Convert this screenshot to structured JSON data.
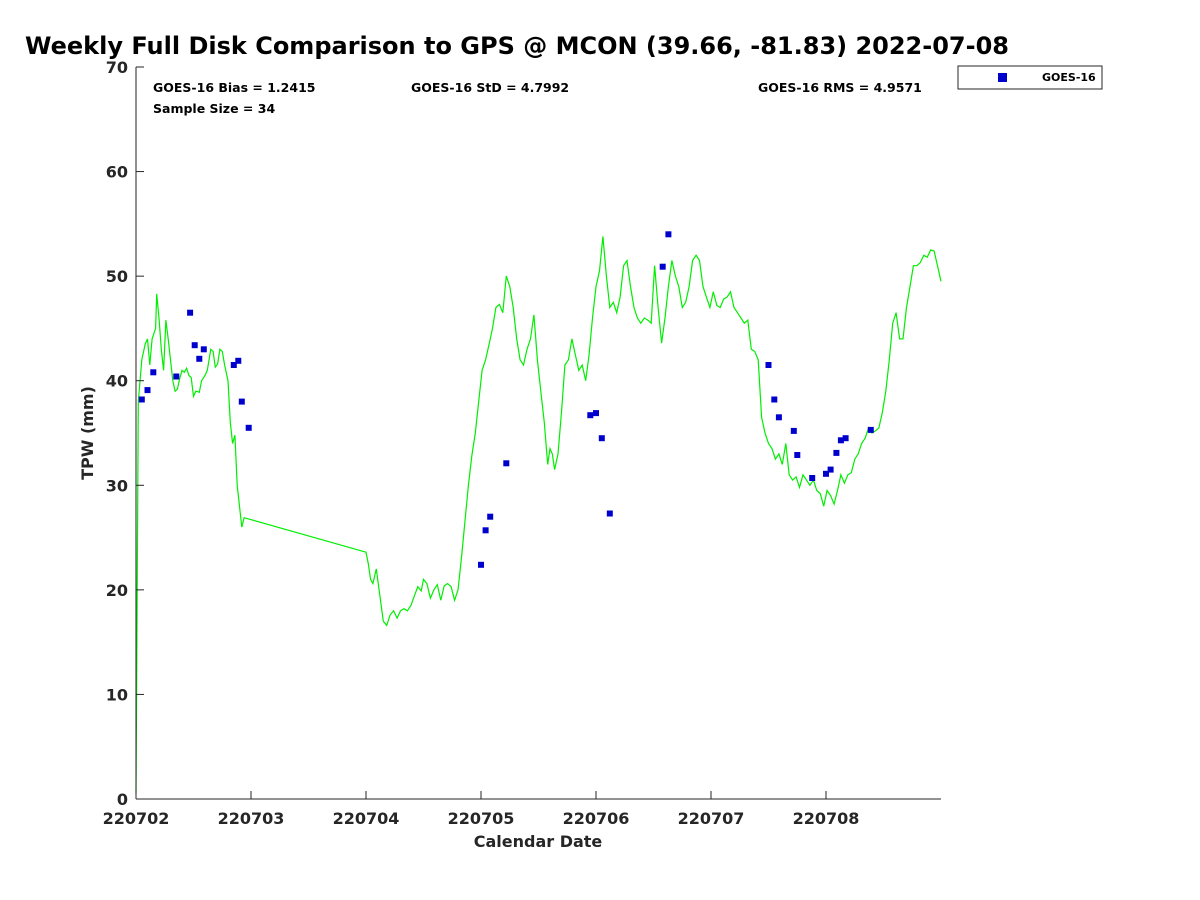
{
  "chart_data": {
    "type": "scatter",
    "title": "Weekly Full Disk Comparison to GPS @ MCON (39.66, -81.83) 2022-07-08",
    "xlabel": "Calendar Date",
    "ylabel": "TPW (mm)",
    "ylim": [
      0,
      70
    ],
    "xlim": [
      0,
      7
    ],
    "yticks": [
      0,
      10,
      20,
      30,
      40,
      50,
      60,
      70
    ],
    "xticks": [
      {
        "pos": 0,
        "label": "220702"
      },
      {
        "pos": 1,
        "label": "220703"
      },
      {
        "pos": 2,
        "label": "220704"
      },
      {
        "pos": 3,
        "label": "220705"
      },
      {
        "pos": 4,
        "label": "220706"
      },
      {
        "pos": 5,
        "label": "220707"
      },
      {
        "pos": 6,
        "label": "220708"
      }
    ],
    "stats": {
      "bias": "GOES-16 Bias = 1.2415",
      "std": "GOES-16 StD = 4.7992",
      "rms": "GOES-16 RMS = 4.9571",
      "sample": "Sample Size = 34"
    },
    "legend": {
      "label": "GOES-16",
      "placement": "top-right",
      "color": "#0000cc"
    },
    "series": [
      {
        "name": "GPS",
        "type": "line",
        "color": "#00ee00",
        "points": [
          [
            0.0,
            0.5
          ],
          [
            0.02,
            38
          ],
          [
            0.05,
            42
          ],
          [
            0.08,
            43.5
          ],
          [
            0.1,
            44
          ],
          [
            0.12,
            41.5
          ],
          [
            0.14,
            44
          ],
          [
            0.17,
            45
          ],
          [
            0.18,
            48.3
          ],
          [
            0.2,
            46
          ],
          [
            0.22,
            43
          ],
          [
            0.24,
            41
          ],
          [
            0.26,
            45.8
          ],
          [
            0.28,
            44
          ],
          [
            0.3,
            42
          ],
          [
            0.32,
            40
          ],
          [
            0.34,
            39
          ],
          [
            0.36,
            39.2
          ],
          [
            0.38,
            40.2
          ],
          [
            0.4,
            41
          ],
          [
            0.42,
            40.8
          ],
          [
            0.44,
            41.2
          ],
          [
            0.46,
            40.5
          ],
          [
            0.48,
            40.3
          ],
          [
            0.5,
            38.5
          ],
          [
            0.52,
            39
          ],
          [
            0.55,
            38.9
          ],
          [
            0.57,
            40
          ],
          [
            0.6,
            40.5
          ],
          [
            0.62,
            41
          ],
          [
            0.65,
            43
          ],
          [
            0.67,
            42.8
          ],
          [
            0.69,
            41.3
          ],
          [
            0.71,
            41.6
          ],
          [
            0.73,
            43
          ],
          [
            0.75,
            42.8
          ],
          [
            0.77,
            41.5
          ],
          [
            0.8,
            40
          ],
          [
            0.82,
            36
          ],
          [
            0.84,
            34
          ],
          [
            0.86,
            34.8
          ],
          [
            0.88,
            30
          ],
          [
            0.9,
            28
          ],
          [
            0.92,
            26
          ],
          [
            0.94,
            26.9
          ],
          [
            2.0,
            23.6
          ],
          [
            2.02,
            22.5
          ],
          [
            2.04,
            21
          ],
          [
            2.06,
            20.6
          ],
          [
            2.09,
            22
          ],
          [
            2.12,
            19.5
          ],
          [
            2.15,
            17
          ],
          [
            2.18,
            16.6
          ],
          [
            2.21,
            17.6
          ],
          [
            2.24,
            18
          ],
          [
            2.27,
            17.3
          ],
          [
            2.3,
            18
          ],
          [
            2.33,
            18.2
          ],
          [
            2.36,
            18
          ],
          [
            2.39,
            18.5
          ],
          [
            2.42,
            19.4
          ],
          [
            2.45,
            20.3
          ],
          [
            2.48,
            19.9
          ],
          [
            2.5,
            21
          ],
          [
            2.53,
            20.6
          ],
          [
            2.56,
            19.2
          ],
          [
            2.59,
            20
          ],
          [
            2.62,
            20.5
          ],
          [
            2.65,
            19
          ],
          [
            2.68,
            20.4
          ],
          [
            2.71,
            20.6
          ],
          [
            2.74,
            20.3
          ],
          [
            2.77,
            19
          ],
          [
            2.8,
            20
          ],
          [
            2.83,
            23
          ],
          [
            2.86,
            26.5
          ],
          [
            2.89,
            30
          ],
          [
            2.92,
            32.8
          ],
          [
            2.95,
            35
          ],
          [
            2.98,
            38
          ],
          [
            3.01,
            41
          ],
          [
            3.04,
            42
          ],
          [
            3.07,
            43.5
          ],
          [
            3.1,
            45
          ],
          [
            3.13,
            47
          ],
          [
            3.16,
            47.3
          ],
          [
            3.19,
            46.5
          ],
          [
            3.22,
            50
          ],
          [
            3.25,
            49
          ],
          [
            3.28,
            47
          ],
          [
            3.31,
            44
          ],
          [
            3.34,
            42
          ],
          [
            3.37,
            41.5
          ],
          [
            3.4,
            43
          ],
          [
            3.43,
            44
          ],
          [
            3.46,
            46.3
          ],
          [
            3.49,
            42
          ],
          [
            3.52,
            39
          ],
          [
            3.55,
            36
          ],
          [
            3.58,
            32
          ],
          [
            3.6,
            33.5
          ],
          [
            3.62,
            33
          ],
          [
            3.64,
            31.5
          ],
          [
            3.67,
            33
          ],
          [
            3.7,
            37
          ],
          [
            3.73,
            41.5
          ],
          [
            3.76,
            42
          ],
          [
            3.79,
            44
          ],
          [
            3.82,
            42.5
          ],
          [
            3.85,
            41
          ],
          [
            3.88,
            41.5
          ],
          [
            3.91,
            40
          ],
          [
            3.94,
            42.5
          ],
          [
            3.97,
            46
          ],
          [
            4.0,
            49
          ],
          [
            4.03,
            50.5
          ],
          [
            4.06,
            53.8
          ],
          [
            4.09,
            50
          ],
          [
            4.12,
            47
          ],
          [
            4.15,
            47.5
          ],
          [
            4.18,
            46.5
          ],
          [
            4.21,
            48
          ],
          [
            4.24,
            51
          ],
          [
            4.27,
            51.5
          ],
          [
            4.3,
            49
          ],
          [
            4.33,
            47
          ],
          [
            4.36,
            46
          ],
          [
            4.39,
            45.5
          ],
          [
            4.42,
            46
          ],
          [
            4.45,
            45.8
          ],
          [
            4.48,
            45.5
          ],
          [
            4.51,
            51
          ],
          [
            4.54,
            47
          ],
          [
            4.57,
            43.6
          ],
          [
            4.6,
            46
          ],
          [
            4.63,
            49
          ],
          [
            4.66,
            51.5
          ],
          [
            4.69,
            50
          ],
          [
            4.72,
            49
          ],
          [
            4.75,
            47
          ],
          [
            4.78,
            47.5
          ],
          [
            4.81,
            49
          ],
          [
            4.84,
            51.5
          ],
          [
            4.87,
            52
          ],
          [
            4.9,
            51.5
          ],
          [
            4.93,
            49
          ],
          [
            4.96,
            48
          ],
          [
            4.99,
            47
          ],
          [
            5.02,
            48.5
          ],
          [
            5.05,
            47.2
          ],
          [
            5.08,
            47
          ],
          [
            5.11,
            47.8
          ],
          [
            5.14,
            48
          ],
          [
            5.17,
            48.5
          ],
          [
            5.2,
            47
          ],
          [
            5.23,
            46.5
          ],
          [
            5.26,
            46
          ],
          [
            5.29,
            45.5
          ],
          [
            5.32,
            45.8
          ],
          [
            5.35,
            43
          ],
          [
            5.38,
            42.8
          ],
          [
            5.41,
            42
          ],
          [
            5.44,
            36.5
          ],
          [
            5.47,
            35
          ],
          [
            5.5,
            34
          ],
          [
            5.53,
            33.5
          ],
          [
            5.56,
            32.5
          ],
          [
            5.59,
            33
          ],
          [
            5.62,
            32
          ],
          [
            5.65,
            34
          ],
          [
            5.68,
            31
          ],
          [
            5.71,
            30.5
          ],
          [
            5.74,
            30.8
          ],
          [
            5.77,
            29.8
          ],
          [
            5.8,
            31
          ],
          [
            5.83,
            30.5
          ],
          [
            5.86,
            30
          ],
          [
            5.89,
            30.5
          ],
          [
            5.92,
            29.5
          ],
          [
            5.95,
            29.2
          ],
          [
            5.98,
            28
          ],
          [
            6.01,
            29.5
          ],
          [
            6.04,
            29
          ],
          [
            6.07,
            28.2
          ],
          [
            6.1,
            29.5
          ],
          [
            6.13,
            31
          ],
          [
            6.16,
            30.2
          ],
          [
            6.19,
            31
          ],
          [
            6.22,
            31.2
          ],
          [
            6.25,
            32.5
          ],
          [
            6.28,
            33
          ],
          [
            6.31,
            34
          ],
          [
            6.34,
            34.5
          ],
          [
            6.37,
            35.5
          ],
          [
            6.4,
            35
          ],
          [
            6.43,
            35.2
          ],
          [
            6.46,
            35.5
          ],
          [
            6.49,
            37
          ],
          [
            6.52,
            39
          ],
          [
            6.55,
            42
          ],
          [
            6.58,
            45.5
          ],
          [
            6.61,
            46.5
          ],
          [
            6.64,
            44
          ],
          [
            6.67,
            44
          ],
          [
            6.7,
            47
          ],
          [
            6.73,
            49
          ],
          [
            6.76,
            51
          ],
          [
            6.79,
            51
          ],
          [
            6.82,
            51.3
          ],
          [
            6.85,
            52
          ],
          [
            6.88,
            51.8
          ],
          [
            6.91,
            52.5
          ],
          [
            6.94,
            52.4
          ],
          [
            6.97,
            51
          ],
          [
            7.0,
            49.5
          ]
        ]
      },
      {
        "name": "GOES-16",
        "type": "scatter",
        "color": "#0000cc",
        "points": [
          [
            0.05,
            38.2
          ],
          [
            0.1,
            39.1
          ],
          [
            0.15,
            40.8
          ],
          [
            0.35,
            40.4
          ],
          [
            0.47,
            46.5
          ],
          [
            0.51,
            43.4
          ],
          [
            0.55,
            42.1
          ],
          [
            0.59,
            43
          ],
          [
            0.85,
            41.5
          ],
          [
            0.89,
            41.9
          ],
          [
            0.92,
            38
          ],
          [
            0.98,
            35.5
          ],
          [
            3.0,
            22.4
          ],
          [
            3.04,
            25.7
          ],
          [
            3.08,
            27
          ],
          [
            3.22,
            32.1
          ],
          [
            3.95,
            36.7
          ],
          [
            4.0,
            36.9
          ],
          [
            4.05,
            34.5
          ],
          [
            4.12,
            27.3
          ],
          [
            4.58,
            50.9
          ],
          [
            4.63,
            54
          ],
          [
            5.5,
            41.5
          ],
          [
            5.55,
            38.2
          ],
          [
            5.59,
            36.5
          ],
          [
            5.72,
            35.2
          ],
          [
            5.75,
            32.9
          ],
          [
            5.88,
            30.7
          ],
          [
            6.0,
            31.1
          ],
          [
            6.04,
            31.5
          ],
          [
            6.09,
            33.1
          ],
          [
            6.13,
            34.3
          ],
          [
            6.17,
            34.5
          ],
          [
            6.39,
            35.3
          ]
        ]
      }
    ]
  }
}
